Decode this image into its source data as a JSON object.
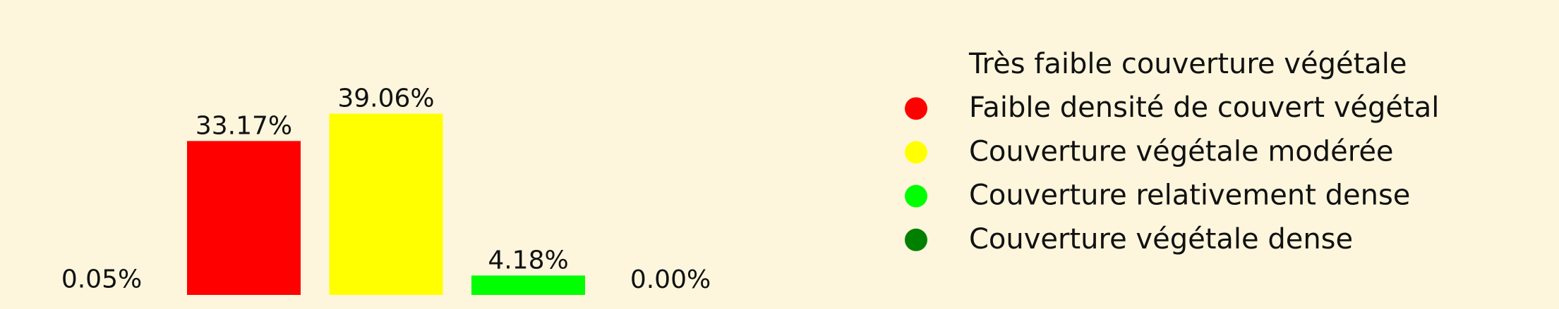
{
  "chart_data": {
    "type": "bar",
    "categories": [
      "Très faible couverture végétale",
      "Faible densité de couvert végétal",
      "Couverture végétale modérée",
      "Couverture relativement dense",
      "Couverture végétale dense"
    ],
    "values": [
      0.05,
      33.17,
      39.06,
      4.18,
      0.0
    ],
    "value_labels": [
      "0.05%",
      "33.17%",
      "39.06%",
      "4.18%",
      "0.00%"
    ],
    "colors": [
      "#fdf6dc",
      "#ff0000",
      "#ffff00",
      "#00ff00",
      "#008000"
    ],
    "legend": {
      "placement": "right",
      "entries": [
        {
          "label": "Très faible couverture végétale",
          "color": "#fdf6dc"
        },
        {
          "label": "Faible densité de couvert végétal",
          "color": "#ff0000"
        },
        {
          "label": "Couverture végétale modérée",
          "color": "#ffff00"
        },
        {
          "label": "Couverture relativement dense",
          "color": "#00ff00"
        },
        {
          "label": "Couverture végétale dense",
          "color": "#008000"
        }
      ]
    },
    "ylim": [
      0,
      60
    ],
    "grid": false,
    "axes_visible": false,
    "background": "#fdf6dc"
  }
}
